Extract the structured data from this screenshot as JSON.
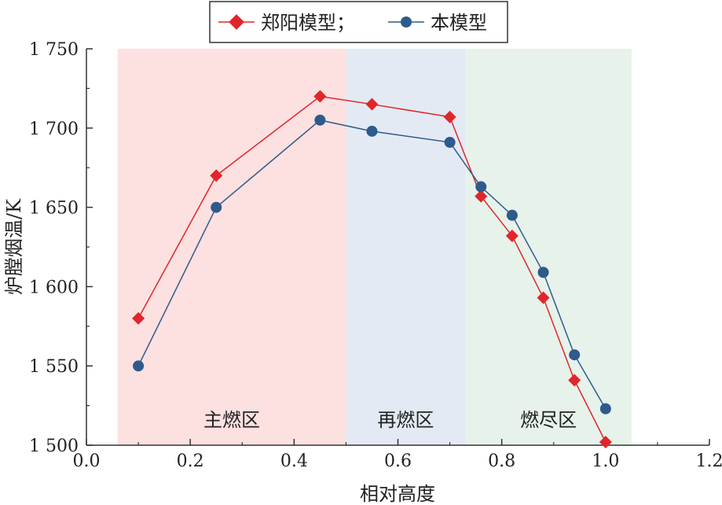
{
  "chart_data": {
    "type": "line",
    "xlabel": "相对高度",
    "ylabel": "炉膛烟温/K",
    "xlim": [
      0.0,
      1.2
    ],
    "ylim": [
      1500,
      1750
    ],
    "xticks": [
      0.0,
      0.2,
      0.4,
      0.6,
      0.8,
      1.0,
      1.2
    ],
    "xtick_labels": [
      "0.0",
      "0.2",
      "0.4",
      "0.6",
      "0.8",
      "1.0",
      "1.2"
    ],
    "yticks": [
      1500,
      1550,
      1600,
      1650,
      1700,
      1750
    ],
    "ytick_labels": [
      "1 500",
      "1 550",
      "1 600",
      "1 650",
      "1 700",
      "1 750"
    ],
    "grid": false,
    "legend_position": "top",
    "zones": [
      {
        "label": "主燃区",
        "x_start": 0.06,
        "x_end": 0.5,
        "color": "#fde0e0"
      },
      {
        "label": "再燃区",
        "x_start": 0.5,
        "x_end": 0.73,
        "color": "#e3eaf4"
      },
      {
        "label": "燃尽区",
        "x_start": 0.73,
        "x_end": 1.05,
        "color": "#e6f2ea"
      }
    ],
    "series": [
      {
        "name": "郑阳模型；",
        "color": "#e0262b",
        "marker": "diamond",
        "x": [
          0.1,
          0.25,
          0.45,
          0.55,
          0.7,
          0.76,
          0.82,
          0.88,
          0.94,
          1.0
        ],
        "y": [
          1580,
          1670,
          1720,
          1715,
          1707,
          1657,
          1632,
          1593,
          1541,
          1502
        ]
      },
      {
        "name": "本模型",
        "color": "#2e5a8c",
        "marker": "circle",
        "x": [
          0.1,
          0.25,
          0.45,
          0.55,
          0.7,
          0.76,
          0.82,
          0.88,
          0.94,
          1.0
        ],
        "y": [
          1550,
          1650,
          1705,
          1698,
          1691,
          1663,
          1645,
          1609,
          1557,
          1523
        ]
      }
    ]
  }
}
